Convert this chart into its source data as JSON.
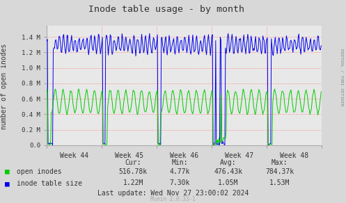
{
  "title": "Inode table usage - by month",
  "ylabel": "number of open inodes",
  "bg_color": "#d8d8d8",
  "plot_bg_color": "#e8e8e8",
  "grid_color": "#ff8888",
  "blue_color": "#0000ee",
  "green_color": "#00cc00",
  "week_labels": [
    "Week 44",
    "Week 45",
    "Week 46",
    "Week 47",
    "Week 48"
  ],
  "ytick_labels": [
    "0.0",
    "0.2 M",
    "0.4 M",
    "0.6 M",
    "0.8 M",
    "1.0 M",
    "1.2 M",
    "1.4 M"
  ],
  "ytick_vals": [
    0.0,
    200000,
    400000,
    600000,
    800000,
    1000000,
    1200000,
    1400000
  ],
  "ylim": [
    0,
    1550000
  ],
  "legend_labels": [
    "open inodes",
    "inode table size"
  ],
  "stats_header": [
    "Cur:",
    "Min:",
    "Avg:",
    "Max:"
  ],
  "stats_open": [
    "516.78k",
    "4.77k",
    "476.43k",
    "784.37k"
  ],
  "stats_table": [
    "1.22M",
    "7.30k",
    "1.05M",
    "1.53M"
  ],
  "last_update": "Last update: Wed Nov 27 23:00:02 2024",
  "footer": "Munin 2.0.33-1",
  "rrdtool_text": "RRDTOOL / TOBI OETIKER"
}
